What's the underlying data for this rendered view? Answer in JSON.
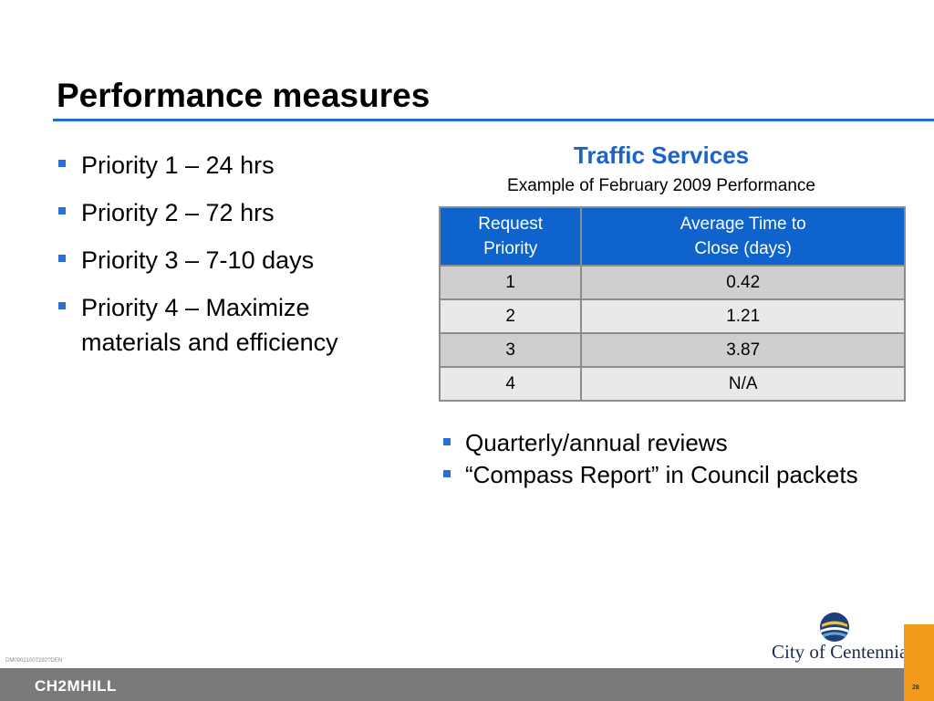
{
  "slide": {
    "title": "Performance measures",
    "left_bullets": [
      "Priority 1 – 24 hrs",
      "Priority 2 – 72 hrs",
      "Priority 3 – 7-10 days",
      "Priority 4 – Maximize materials and efficiency"
    ]
  },
  "section": {
    "title": "Traffic Services",
    "subtitle": "Example of February 2009 Performance"
  },
  "table": {
    "headers": [
      "Request Priority",
      "Average Time to Close (days)"
    ],
    "header_lines": [
      [
        "Request",
        "Priority"
      ],
      [
        "Average Time to",
        "Close (days)"
      ]
    ],
    "rows": [
      [
        "1",
        "0.42"
      ],
      [
        "2",
        "1.21"
      ],
      [
        "3",
        "3.87"
      ],
      [
        "4",
        "N/A"
      ]
    ]
  },
  "right_bullets": [
    "Quarterly/annual reviews",
    "“Compass Report” in Council packets"
  ],
  "footer": {
    "doc_id": "DM09021007292?DEN",
    "brand": "CH2MHILL",
    "logo": "City of Centennial",
    "page_number": "28"
  },
  "colors": {
    "accent_blue": "#1f6fc5",
    "header_blue": "#0f63cc",
    "footer_gray": "#7a7a7a",
    "orange": "#f39a1b"
  }
}
